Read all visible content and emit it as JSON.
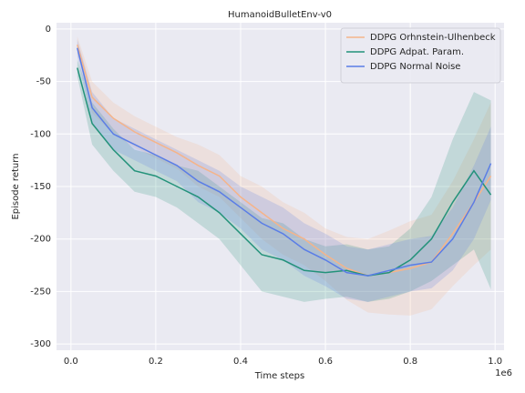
{
  "chart_data": {
    "type": "line",
    "title": "HumanoidBulletEnv-v0",
    "xlabel": "Time steps",
    "ylabel": "Episode return",
    "x_offset_label": "1e6",
    "x": [
      0.015,
      0.05,
      0.1,
      0.15,
      0.2,
      0.25,
      0.3,
      0.35,
      0.4,
      0.45,
      0.5,
      0.55,
      0.6,
      0.65,
      0.7,
      0.75,
      0.8,
      0.85,
      0.9,
      0.95,
      0.99
    ],
    "series": [
      {
        "name": "DDPG Orhnstein-Ulhenbeck",
        "color": "#f5b48a",
        "values": [
          -15,
          -65,
          -85,
          -98,
          -108,
          -118,
          -130,
          -140,
          -160,
          -175,
          -190,
          -200,
          -215,
          -228,
          -235,
          -232,
          -228,
          -222,
          -195,
          -165,
          -140
        ],
        "upper": [
          -7,
          -50,
          -70,
          -83,
          -93,
          -103,
          -110,
          -120,
          -140,
          -150,
          -165,
          -175,
          -190,
          -198,
          -200,
          -192,
          -183,
          -177,
          -145,
          -105,
          -70
        ],
        "lower": [
          -23,
          -80,
          -100,
          -113,
          -123,
          -133,
          -150,
          -160,
          -180,
          -200,
          -215,
          -225,
          -240,
          -258,
          -270,
          -272,
          -273,
          -267,
          -245,
          -225,
          -210
        ]
      },
      {
        "name": "DDPG Adpat. Param.",
        "color": "#23927a",
        "values": [
          -37,
          -90,
          -115,
          -135,
          -140,
          -150,
          -160,
          -175,
          -195,
          -215,
          -220,
          -230,
          -232,
          -230,
          -235,
          -232,
          -220,
          -200,
          -165,
          -135,
          -158
        ],
        "upper": [
          -29,
          -70,
          -95,
          -115,
          -120,
          -130,
          -135,
          -150,
          -165,
          -180,
          -185,
          -200,
          -207,
          -205,
          -210,
          -207,
          -190,
          -160,
          -105,
          -60,
          -68
        ],
        "lower": [
          -45,
          -110,
          -135,
          -155,
          -160,
          -170,
          -185,
          -200,
          -225,
          -250,
          -255,
          -260,
          -257,
          -255,
          -260,
          -257,
          -250,
          -240,
          -225,
          -210,
          -248
        ]
      },
      {
        "name": "DDPG Normal Noise",
        "color": "#5a7de6",
        "values": [
          -18,
          -75,
          -100,
          -110,
          -120,
          -130,
          -145,
          -155,
          -170,
          -185,
          -195,
          -210,
          -220,
          -232,
          -235,
          -230,
          -225,
          -222,
          -200,
          -165,
          -128
        ],
        "upper": [
          -10,
          -60,
          -85,
          -95,
          -105,
          -115,
          -125,
          -135,
          -150,
          -160,
          -170,
          -185,
          -195,
          -207,
          -210,
          -205,
          -200,
          -197,
          -170,
          -130,
          -93
        ],
        "lower": [
          -26,
          -90,
          -115,
          -125,
          -135,
          -145,
          -165,
          -175,
          -190,
          -210,
          -220,
          -235,
          -245,
          -257,
          -260,
          -255,
          -250,
          -247,
          -230,
          -200,
          -163
        ]
      }
    ],
    "xlim": [
      -0.034,
      1.021
    ],
    "xticks": [
      {
        "value": 0,
        "label": "0.0"
      },
      {
        "value": 0.2,
        "label": "0.2"
      },
      {
        "value": 0.4,
        "label": "0.4"
      },
      {
        "value": 0.6,
        "label": "0.6"
      },
      {
        "value": 0.8,
        "label": "0.8"
      },
      {
        "value": 1,
        "label": "1.0"
      }
    ],
    "ylim": [
      -306,
      6
    ],
    "yticks": [
      0,
      -50,
      -100,
      -150,
      -200,
      -250,
      -300
    ],
    "grid": true,
    "legend": "upper right"
  }
}
